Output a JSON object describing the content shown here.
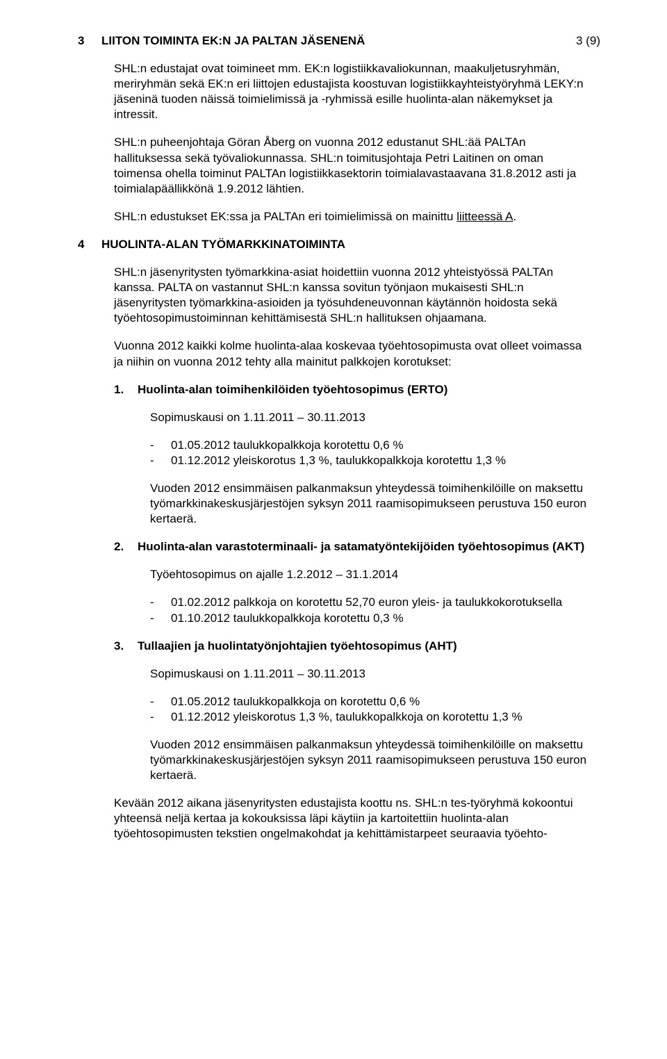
{
  "page_number": "3 (9)",
  "section3": {
    "number": "3",
    "title": "LIITON TOIMINTA EK:N JA PALTAN JÄSENENÄ",
    "p1": "SHL:n edustajat ovat toimineet mm. EK:n logistiikkavaliokunnan, maakuljetusryhmän, meriryhmän sekä EK:n eri liittojen edustajista koostuvan logistiikkayhteistyöryhmä LEKY:n jäseninä tuoden näissä toimielimissä ja -ryhmissä esille huolinta-alan näkemykset ja intressit.",
    "p2": "SHL:n puheenjohtaja Göran Åberg on vuonna 2012 edustanut SHL:ää PALTAn hallituksessa sekä työvaliokunnassa. SHL:n toimitusjohtaja Petri Laitinen on oman toimensa ohella toiminut PALTAn logistiikkasektorin toimialavastaavana 31.8.2012 asti ja toimialapäällikkönä 1.9.2012 lähtien.",
    "p3_pre": "SHL:n edustukset EK:ssa ja PALTAn eri toimielimissä on mainittu ",
    "p3_link": "liitteessä A",
    "p3_post": "."
  },
  "section4": {
    "number": "4",
    "title": "HUOLINTA-ALAN TYÖMARKKINATOIMINTA",
    "p1": "SHL:n jäsenyritysten työmarkkina-asiat hoidettiin vuonna 2012 yhteistyössä PALTAn kanssa. PALTA on vastannut SHL:n kanssa sovitun työnjaon mukaisesti SHL:n jäsenyritysten työmarkkina-asioiden ja työsuhdeneuvonnan käytännön hoidosta sekä työehtosopimustoiminnan kehittämisestä SHL:n hallituksen ohjaamana.",
    "p2": "Vuonna 2012 kaikki kolme huolinta-alaa koskevaa työehtosopimusta ovat olleet voimassa ja niihin on vuonna 2012 tehty alla mainitut palkkojen korotukset:",
    "sub1": {
      "number": "1.",
      "title": "Huolinta-alan toimihenkilöiden työehtosopimus (ERTO)",
      "period": "Sopimuskausi on 1.11.2011 – 30.11.2013",
      "bullets": [
        "01.05.2012 taulukkopalkkoja korotettu 0,6 %",
        "01.12.2012 yleiskorotus 1,3 %, taulukkopalkkoja korotettu 1,3 %"
      ],
      "p_after": "Vuoden 2012 ensimmäisen palkanmaksun yhteydessä toimihenkilöille on maksettu työmarkkinakeskusjärjestöjen syksyn 2011 raamisopimukseen perustuva 150 euron kertaerä."
    },
    "sub2": {
      "number": "2.",
      "title": "Huolinta-alan varastoterminaali- ja satamatyöntekijöiden työehtosopimus (AKT)",
      "period": "Työehtosopimus on ajalle 1.2.2012 – 31.1.2014",
      "bullets": [
        "01.02.2012 palkkoja on korotettu 52,70 euron yleis- ja taulukkokorotuksella",
        "01.10.2012 taulukkopalkkoja korotettu 0,3 %"
      ]
    },
    "sub3": {
      "number": "3.",
      "title": "Tullaajien ja huolintatyönjohtajien työehtosopimus (AHT)",
      "period": "Sopimuskausi on 1.11.2011 – 30.11.2013",
      "bullets": [
        "01.05.2012 taulukkopalkkoja on korotettu 0,6 %",
        "01.12.2012 yleiskorotus 1,3 %, taulukkopalkkoja on korotettu 1,3 %"
      ],
      "p_after": "Vuoden 2012 ensimmäisen palkanmaksun yhteydessä toimihenkilöille on maksettu työmarkkinakeskusjärjestöjen syksyn 2011 raamisopimukseen perustuva 150 euron kertaerä."
    },
    "p_last": "Kevään 2012 aikana jäsenyritysten edustajista koottu ns. SHL:n tes-työryhmä kokoontui yhteensä neljä kertaa ja kokouksissa läpi käytiin ja kartoitettiin huolinta-alan työehtosopimusten tekstien ongelmakohdat ja kehittämistarpeet seuraavia työehto-"
  }
}
